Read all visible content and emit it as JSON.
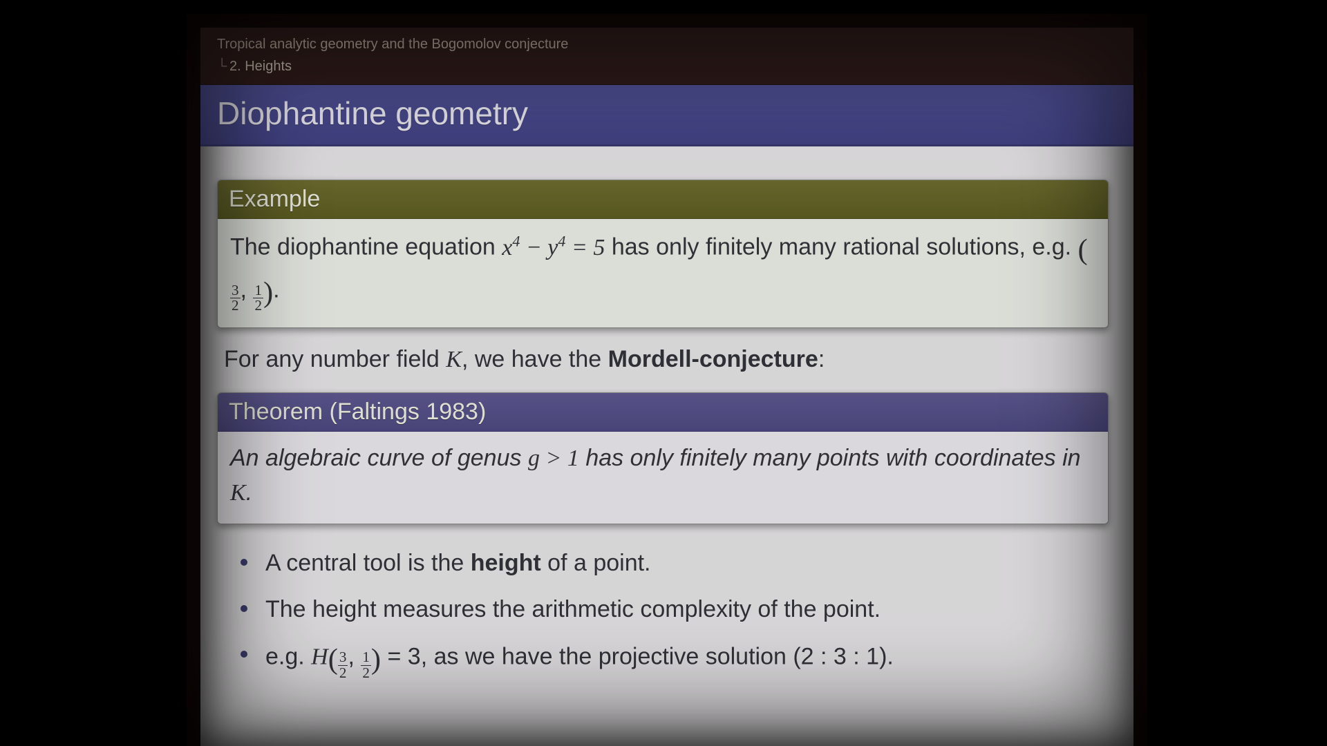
{
  "crumbs": {
    "top": "Tropical analytic geometry and the Bogomolov conjecture",
    "sub": "2. Heights"
  },
  "title": "Diophantine geometry",
  "example": {
    "header": "Example",
    "text_prefix": "The diophantine equation ",
    "equation_plain": "x⁴ − y⁴ = 5",
    "text_mid": " has only finitely many rational solutions, e.g. ",
    "pair_a_num": "3",
    "pair_a_den": "2",
    "pair_b_num": "1",
    "pair_b_den": "2",
    "text_suffix": "."
  },
  "interline": {
    "prefix": "For any number field ",
    "K": "K",
    "mid": ", we have the ",
    "bold": "Mordell-conjecture",
    "suffix": ":"
  },
  "theorem": {
    "header": "Theorem (Faltings 1983)",
    "text_prefix": "An algebraic curve of genus ",
    "g_gt_1": "g > 1",
    "text_mid": " has only finitely many points with coordinates in ",
    "K": "K",
    "text_suffix": "."
  },
  "bullets": {
    "b1_pre": "A central tool is the ",
    "b1_bold": "height",
    "b1_post": " of a point.",
    "b2": "The height measures the arithmetic complexity of the point.",
    "b3_pre": "e.g. ",
    "b3_H": "H",
    "b3_pair_a_num": "3",
    "b3_pair_a_den": "2",
    "b3_pair_b_num": "1",
    "b3_pair_b_den": "2",
    "b3_eq": " = 3, as we have the projective solution (2 : 3 : 1)."
  },
  "style": {
    "colors": {
      "page_bg": "#000000",
      "slide_bg": "#e8e6e8",
      "crumb_bg": "#2a1614",
      "crumb_fg": "#b8a89a",
      "title_bg": "#4a4a92",
      "title_fg": "#eceaf2",
      "example_hdr_bg": "#6b6a2a",
      "theorem_hdr_bg": "#5a558e",
      "block_body_bg": "#edefe9",
      "text": "#2e2e36",
      "bullet_marker": "#3a3a70"
    },
    "fonts": {
      "title_size_pt": 34,
      "body_size_pt": 26,
      "crumb_size_pt": 15
    }
  }
}
